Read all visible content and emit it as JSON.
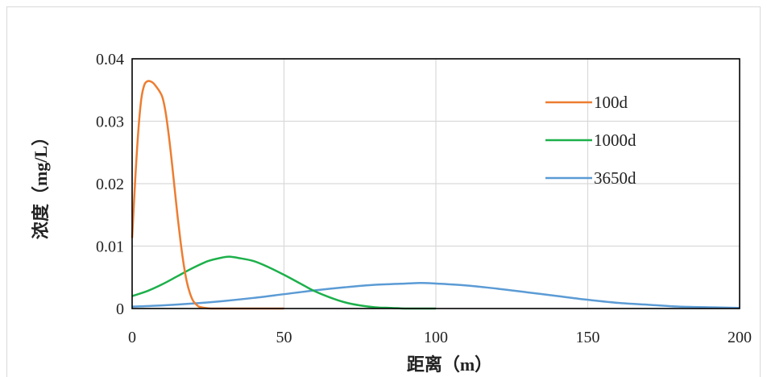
{
  "chart_data": {
    "type": "line",
    "xlabel": "距离（m）",
    "ylabel": "浓度（mg/L）",
    "xlim": [
      0,
      200
    ],
    "ylim": [
      0,
      0.04
    ],
    "x_ticks": [
      "0",
      "50",
      "100",
      "150",
      "200"
    ],
    "y_ticks": [
      "0",
      "0.01",
      "0.02",
      "0.03",
      "0.04"
    ],
    "grid": true,
    "legend_position": "top-right",
    "series": [
      {
        "name": "100d",
        "color": "#ED7D31",
        "x": [
          0,
          1,
          2,
          3,
          4,
          5,
          6,
          7,
          8,
          9,
          10,
          11,
          12,
          13,
          14,
          15,
          16,
          17,
          18,
          19,
          20,
          21,
          22,
          24,
          26,
          28,
          30,
          35,
          40,
          45,
          50
        ],
        "y": [
          0.0113,
          0.0205,
          0.0282,
          0.0335,
          0.0358,
          0.0364,
          0.0364,
          0.0361,
          0.0355,
          0.0348,
          0.0338,
          0.0315,
          0.028,
          0.0238,
          0.0192,
          0.0146,
          0.0105,
          0.007,
          0.0043,
          0.0025,
          0.0013,
          0.0007,
          0.0003,
          0.0001,
          0.0,
          0.0,
          0.0,
          0.0,
          0.0,
          0.0,
          0.0
        ]
      },
      {
        "name": "1000d",
        "color": "#1DB04B",
        "x": [
          0,
          5,
          10,
          15,
          20,
          25,
          30,
          32,
          35,
          40,
          45,
          50,
          55,
          60,
          65,
          70,
          75,
          80,
          85,
          90,
          95,
          100
        ],
        "y": [
          0.002,
          0.0028,
          0.0039,
          0.0052,
          0.0065,
          0.0076,
          0.0082,
          0.0083,
          0.0081,
          0.0076,
          0.0066,
          0.0054,
          0.0041,
          0.0028,
          0.0018,
          0.001,
          0.0005,
          0.0002,
          0.0001,
          0.0,
          0.0,
          0.0
        ]
      },
      {
        "name": "3650d",
        "color": "#5B9BD5",
        "x": [
          0,
          10,
          20,
          30,
          40,
          50,
          60,
          70,
          80,
          90,
          95,
          100,
          110,
          120,
          130,
          140,
          150,
          160,
          170,
          180,
          190,
          200
        ],
        "y": [
          0.0003,
          0.0005,
          0.0008,
          0.0012,
          0.0017,
          0.0023,
          0.0029,
          0.0034,
          0.0038,
          0.004,
          0.0041,
          0.004,
          0.0037,
          0.0032,
          0.0026,
          0.002,
          0.0014,
          0.0009,
          0.0006,
          0.0003,
          0.0002,
          0.0001
        ]
      }
    ]
  }
}
